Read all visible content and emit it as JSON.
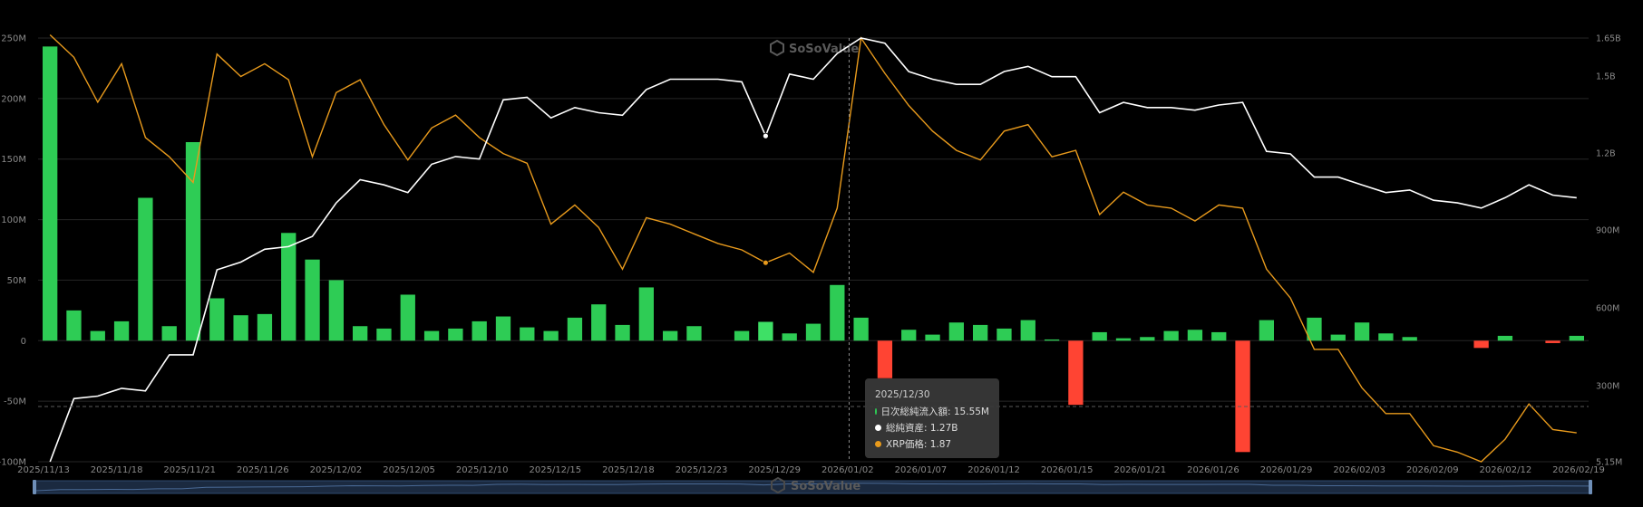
{
  "watermark": "SoSoValue",
  "colors": {
    "inflow_positive": "#2ecc55",
    "inflow_negative": "#ff4433",
    "total_assets": "#ffffff",
    "xrp_price": "#e89a1c",
    "grid": "#262626",
    "axis_text": "#8a8a8a"
  },
  "tooltip": {
    "date": "2025/12/30",
    "rows": [
      {
        "label": "日次総純流入額: 15.55M",
        "color": "#2ecc55",
        "icon": "dot-icon"
      },
      {
        "label": "総純資産: 1.27B",
        "color": "#ffffff",
        "icon": "dot-icon"
      },
      {
        "label": "XRP価格: 1.87",
        "color": "#e89a1c",
        "icon": "dot-icon"
      }
    ]
  },
  "chart_data": {
    "type": "bar+line",
    "title": "",
    "left_axis": {
      "ticks": [
        "250M",
        "200M",
        "150M",
        "100M",
        "50M",
        "0",
        "-50M",
        "-100M"
      ],
      "ylim": [
        -100,
        250
      ],
      "unit": "M"
    },
    "right_axis": {
      "ticks": [
        "1.65B",
        "1.5B",
        "1.2B",
        "900M",
        "600M",
        "300M",
        "5.15M"
      ]
    },
    "x_tick_labels": [
      "2025/11/13",
      "2025/11/18",
      "2025/11/21",
      "2025/11/26",
      "2025/12/02",
      "2025/12/05",
      "2025/12/10",
      "2025/12/15",
      "2025/12/18",
      "2025/12/23",
      "2025/12/29",
      "2026/01/02",
      "2026/01/07",
      "2026/01/12",
      "2026/01/15",
      "2026/01/21",
      "2026/01/26",
      "2026/01/29",
      "2026/02/03",
      "2026/02/09",
      "2026/02/12",
      "2026/02/19"
    ],
    "series": [
      {
        "name": "日次総純流入額",
        "type": "bar",
        "values_millions": [
          243,
          25,
          8,
          16,
          118,
          12,
          164,
          35,
          21,
          22,
          89,
          67,
          50,
          12,
          10,
          38,
          8,
          10,
          16,
          20,
          11,
          8,
          19,
          30,
          13,
          44,
          8,
          12,
          0,
          8,
          15.55,
          6,
          14,
          46,
          19,
          -31,
          9,
          5,
          15,
          13,
          10,
          17,
          1,
          -53,
          7,
          2,
          3,
          8,
          9,
          7,
          -92,
          17,
          0,
          19,
          5,
          15,
          6,
          3,
          0,
          0,
          -6,
          4,
          0,
          -2,
          4
        ]
      },
      {
        "name": "総純資産",
        "type": "line",
        "values_billions": [
          0.005,
          0.25,
          0.26,
          0.29,
          0.28,
          0.42,
          0.42,
          0.75,
          0.78,
          0.83,
          0.84,
          0.88,
          1.01,
          1.1,
          1.08,
          1.05,
          1.16,
          1.19,
          1.18,
          1.41,
          1.42,
          1.34,
          1.38,
          1.36,
          1.35,
          1.45,
          1.49,
          1.49,
          1.49,
          1.48,
          1.27,
          1.51,
          1.49,
          1.59,
          1.65,
          1.63,
          1.52,
          1.49,
          1.47,
          1.47,
          1.52,
          1.54,
          1.5,
          1.5,
          1.36,
          1.4,
          1.38,
          1.38,
          1.37,
          1.39,
          1.4,
          1.21,
          1.2,
          1.11,
          1.11,
          1.08,
          1.05,
          1.06,
          1.02,
          1.01,
          0.99,
          1.03,
          1.08,
          1.04,
          1.03
        ]
      },
      {
        "name": "XRP価格",
        "type": "line",
        "values": [
          2.58,
          2.51,
          2.37,
          2.49,
          2.26,
          2.2,
          2.12,
          2.52,
          2.45,
          2.49,
          2.44,
          2.2,
          2.4,
          2.44,
          2.3,
          2.19,
          2.29,
          2.33,
          2.26,
          2.21,
          2.18,
          1.99,
          2.05,
          1.98,
          1.85,
          2.01,
          1.99,
          1.96,
          1.93,
          1.91,
          1.87,
          1.9,
          1.84,
          2.04,
          2.57,
          2.46,
          2.36,
          2.28,
          2.22,
          2.19,
          2.28,
          2.3,
          2.2,
          2.22,
          2.02,
          2.09,
          2.05,
          2.04,
          2.0,
          2.05,
          2.04,
          1.85,
          1.76,
          1.6,
          1.6,
          1.48,
          1.4,
          1.4,
          1.3,
          1.28,
          1.25,
          1.32,
          1.43,
          1.35,
          1.34
        ]
      }
    ],
    "highlight_index": 30,
    "crosshair_index": 34,
    "grid": true
  }
}
